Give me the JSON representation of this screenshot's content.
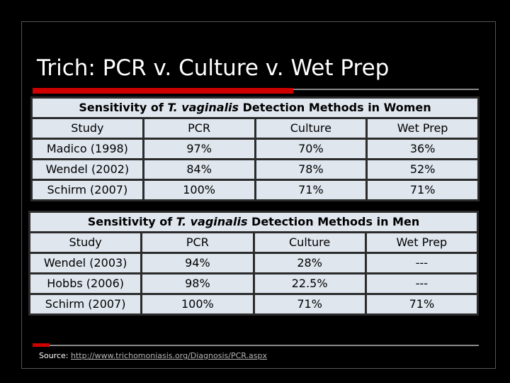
{
  "slide": {
    "title": "Trich: PCR v. Culture v. Wet Prep"
  },
  "women_table": {
    "title_pre": "Sensitivity of ",
    "title_species": "T. vaginalis",
    "title_post": " Detection Methods in Women",
    "headers": [
      "Study",
      "PCR",
      "Culture",
      "Wet Prep"
    ],
    "rows": [
      [
        "Madico (1998)",
        "97%",
        "70%",
        "36%"
      ],
      [
        "Wendel (2002)",
        "84%",
        "78%",
        "52%"
      ],
      [
        "Schirm (2007)",
        "100%",
        "71%",
        "71%"
      ]
    ]
  },
  "men_table": {
    "title_pre": "Sensitivity of ",
    "title_species": "T. vaginalis",
    "title_post": " Detection Methods in Men",
    "headers": [
      "Study",
      "PCR",
      "Culture",
      "Wet Prep"
    ],
    "rows": [
      [
        "Wendel (2003)",
        "94%",
        "28%",
        "---"
      ],
      [
        "Hobbs (2006)",
        "98%",
        "22.5%",
        "---"
      ],
      [
        "Schirm (2007)",
        "100%",
        "71%",
        "71%"
      ]
    ]
  },
  "source": {
    "label": "Source: ",
    "link_text": "http://www.trichomoniasis.org/Diagnosis/PCR.aspx"
  },
  "colors": {
    "background": "#000000",
    "accent_red": "#d00000",
    "cell_fill": "#dfe6ee"
  }
}
